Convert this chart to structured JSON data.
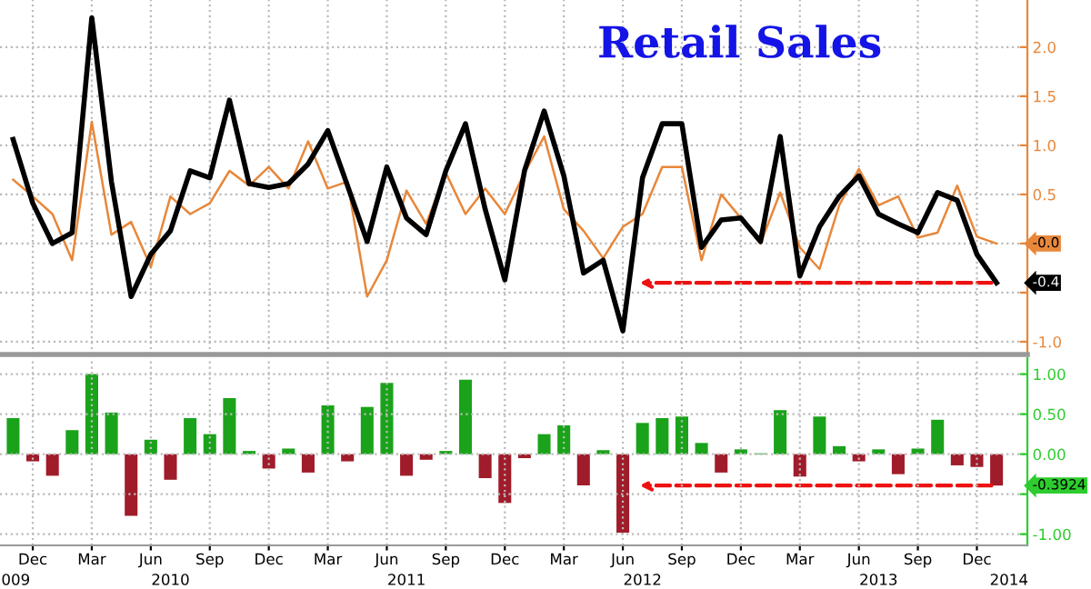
{
  "chart_data": [
    {
      "type": "line",
      "title": "Retail Sales",
      "x": [
        "2009-11",
        "2009-12",
        "2010-01",
        "2010-02",
        "2010-03",
        "2010-04",
        "2010-05",
        "2010-06",
        "2010-07",
        "2010-08",
        "2010-09",
        "2010-10",
        "2010-11",
        "2010-12",
        "2011-01",
        "2011-02",
        "2011-03",
        "2011-04",
        "2011-05",
        "2011-06",
        "2011-07",
        "2011-08",
        "2011-09",
        "2011-10",
        "2011-11",
        "2011-12",
        "2012-01",
        "2012-02",
        "2012-03",
        "2012-04",
        "2012-05",
        "2012-06",
        "2012-07",
        "2012-08",
        "2012-09",
        "2012-10",
        "2012-11",
        "2012-12",
        "2013-01",
        "2013-02",
        "2013-03",
        "2013-04",
        "2013-05",
        "2013-06",
        "2013-07",
        "2013-08",
        "2013-09",
        "2013-10",
        "2013-11",
        "2013-12",
        "2014-01"
      ],
      "series": [
        {
          "color": "#e8873a",
          "values": [
            0.65,
            0.48,
            0.3,
            -0.17,
            1.24,
            0.09,
            0.22,
            -0.24,
            0.48,
            0.3,
            0.41,
            0.74,
            0.59,
            0.78,
            0.56,
            1.04,
            0.56,
            0.63,
            -0.54,
            -0.17,
            0.54,
            0.2,
            0.72,
            0.3,
            0.56,
            0.3,
            0.72,
            1.09,
            0.35,
            0.13,
            -0.15,
            0.17,
            0.3,
            0.78,
            0.78,
            -0.17,
            0.5,
            0.26,
            0.0,
            0.52,
            -0.04,
            -0.26,
            0.39,
            0.76,
            0.39,
            0.48,
            0.06,
            0.11,
            0.59,
            0.07,
            0.0
          ]
        },
        {
          "color": "#000000",
          "values": [
            1.06,
            0.41,
            0.0,
            0.11,
            2.3,
            0.63,
            -0.54,
            -0.11,
            0.13,
            0.74,
            0.67,
            1.46,
            0.61,
            0.57,
            0.61,
            0.81,
            1.15,
            0.59,
            0.02,
            0.78,
            0.26,
            0.09,
            0.74,
            1.22,
            0.35,
            -0.37,
            0.74,
            1.35,
            0.69,
            -0.3,
            -0.17,
            -0.89,
            0.67,
            1.22,
            1.22,
            -0.04,
            0.24,
            0.26,
            0.02,
            1.09,
            -0.33,
            0.17,
            0.48,
            0.69,
            0.3,
            0.2,
            0.11,
            0.52,
            0.44,
            -0.11,
            -0.4
          ]
        }
      ],
      "xlim": [
        "2009-10-11",
        "2014-02-18"
      ],
      "ylim": [
        -1.13,
        2.48
      ],
      "yticks": [
        {
          "value": -1,
          "label": "-1.0"
        },
        {
          "value": -0.5,
          "label": null
        },
        {
          "value": 0,
          "label": null
        },
        {
          "value": 0.5,
          "label": "0.5"
        },
        {
          "value": 1,
          "label": "1.0"
        },
        {
          "value": 1.5,
          "label": "1.5"
        },
        {
          "value": 2,
          "label": "2.0"
        }
      ],
      "tick_labels": "y",
      "grid": true,
      "line_style": "solid",
      "marker": "none",
      "annotations": [
        "-0.0",
        "-0.4"
      ]
    },
    {
      "type": "bar",
      "x": [
        "2009-11",
        "2009-12",
        "2010-01",
        "2010-02",
        "2010-03",
        "2010-04",
        "2010-05",
        "2010-06",
        "2010-07",
        "2010-08",
        "2010-09",
        "2010-10",
        "2010-11",
        "2010-12",
        "2011-01",
        "2011-02",
        "2011-03",
        "2011-04",
        "2011-05",
        "2011-06",
        "2011-07",
        "2011-08",
        "2011-09",
        "2011-10",
        "2011-11",
        "2011-12",
        "2012-01",
        "2012-02",
        "2012-03",
        "2012-04",
        "2012-05",
        "2012-06",
        "2012-07",
        "2012-08",
        "2012-09",
        "2012-10",
        "2012-11",
        "2012-12",
        "2013-01",
        "2013-02",
        "2013-03",
        "2013-04",
        "2013-05",
        "2013-06",
        "2013-07",
        "2013-08",
        "2013-09",
        "2013-10",
        "2013-11",
        "2013-12",
        "2014-01"
      ],
      "values": [
        0.45,
        -0.09,
        -0.27,
        0.3,
        1.0,
        0.52,
        -0.77,
        0.18,
        -0.32,
        0.45,
        0.25,
        0.7,
        0.04,
        -0.18,
        0.07,
        -0.23,
        0.61,
        -0.09,
        0.59,
        0.89,
        -0.27,
        -0.07,
        0.04,
        0.93,
        -0.3,
        -0.61,
        -0.05,
        0.25,
        0.36,
        -0.39,
        0.05,
        -0.98,
        0.39,
        0.45,
        0.47,
        0.14,
        -0.23,
        0.06,
        0.01,
        0.55,
        -0.28,
        0.47,
        0.1,
        -0.09,
        0.06,
        -0.25,
        0.07,
        0.43,
        -0.14,
        -0.16,
        -0.3924
      ],
      "colors": [
        "#1aa31a",
        "#a01c2a",
        "#a01c2a",
        "#1aa31a",
        "#1aa31a",
        "#1aa31a",
        "#a01c2a",
        "#1aa31a",
        "#a01c2a",
        "#1aa31a",
        "#1aa31a",
        "#1aa31a",
        "#1aa31a",
        "#a01c2a",
        "#1aa31a",
        "#a01c2a",
        "#1aa31a",
        "#a01c2a",
        "#1aa31a",
        "#1aa31a",
        "#a01c2a",
        "#a01c2a",
        "#1aa31a",
        "#1aa31a",
        "#a01c2a",
        "#a01c2a",
        "#a01c2a",
        "#1aa31a",
        "#1aa31a",
        "#a01c2a",
        "#1aa31a",
        "#a01c2a",
        "#1aa31a",
        "#1aa31a",
        "#1aa31a",
        "#1aa31a",
        "#a01c2a",
        "#1aa31a",
        "#1aa31a",
        "#1aa31a",
        "#a01c2a",
        "#1aa31a",
        "#1aa31a",
        "#a01c2a",
        "#1aa31a",
        "#a01c2a",
        "#1aa31a",
        "#1aa31a",
        "#a01c2a",
        "#a01c2a",
        "#a01c2a"
      ],
      "xlim": [
        "2009-10-11",
        "2014-02-18"
      ],
      "ylim": [
        -1.14,
        1.2
      ],
      "yticks": [
        {
          "value": -1,
          "label": "-1.00"
        },
        {
          "value": -0.5,
          "label": null
        },
        {
          "value": 0,
          "label": "0.00"
        },
        {
          "value": 0.5,
          "label": "0.50"
        },
        {
          "value": 1,
          "label": "1.00"
        }
      ],
      "xticks": [
        {
          "value": "2009-12",
          "label": "Dec"
        },
        {
          "value": "2010-03",
          "label": "Mar"
        },
        {
          "value": "2010-06",
          "label": "Jun"
        },
        {
          "value": "2010-09",
          "label": "Sep"
        },
        {
          "value": "2010-12",
          "label": "Dec"
        },
        {
          "value": "2011-03",
          "label": "Mar"
        },
        {
          "value": "2011-06",
          "label": "Jun"
        },
        {
          "value": "2011-09",
          "label": "Sep"
        },
        {
          "value": "2011-12",
          "label": "Dec"
        },
        {
          "value": "2012-03",
          "label": "Mar"
        },
        {
          "value": "2012-06",
          "label": "Jun"
        },
        {
          "value": "2012-09",
          "label": "Sep"
        },
        {
          "value": "2012-12",
          "label": "Dec"
        },
        {
          "value": "2013-03",
          "label": "Mar"
        },
        {
          "value": "2013-06",
          "label": "Jun"
        },
        {
          "value": "2013-09",
          "label": "Sep"
        },
        {
          "value": "2013-12",
          "label": "Dec"
        }
      ],
      "x2lim": [
        "2009-10-11",
        "2014-02-18"
      ],
      "x2ticks": [
        {
          "value": "2009-11-05",
          "label": "009"
        },
        {
          "value": "2010-07",
          "label": "2010"
        },
        {
          "value": "2011-07",
          "label": "2011"
        },
        {
          "value": "2012-07",
          "label": "2012"
        },
        {
          "value": "2013-07",
          "label": "2013"
        },
        {
          "value": "2014-01-20",
          "label": "2014"
        }
      ],
      "grid": true,
      "annotations": [
        "-0.3924"
      ]
    }
  ]
}
